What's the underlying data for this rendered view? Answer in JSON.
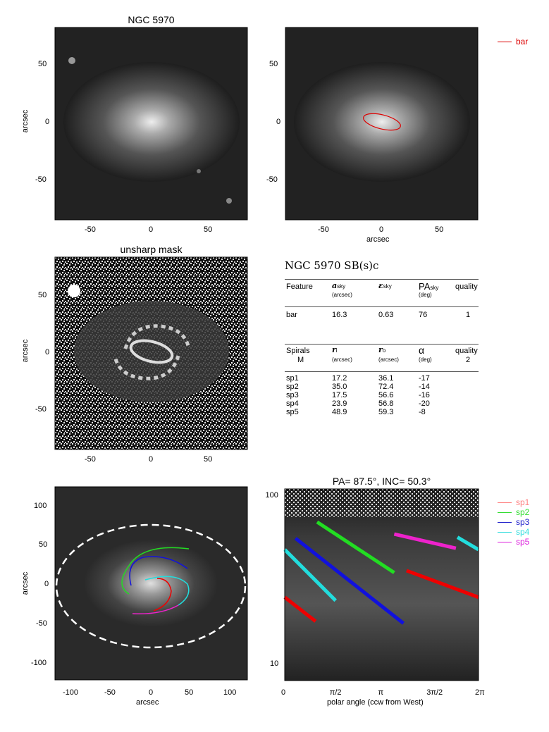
{
  "panels": {
    "top_left": {
      "title": "NGC 5970",
      "ylabel": "arcsec",
      "xticks": [
        "-50",
        "0",
        "50"
      ],
      "yticks": [
        "50",
        "0",
        "-50"
      ]
    },
    "top_right": {
      "xlabel": "arcsec",
      "xticks": [
        "-50",
        "0",
        "50"
      ],
      "yticks": [
        "50",
        "0",
        "-50"
      ],
      "legend": [
        {
          "label": "bar",
          "color": "#dd0000"
        }
      ]
    },
    "mid_left": {
      "title": "unsharp mask",
      "ylabel": "arcsec",
      "xticks": [
        "-50",
        "0",
        "50"
      ],
      "yticks": [
        "50",
        "0",
        "-50"
      ]
    },
    "bottom_left": {
      "xlabel": "arcsec",
      "ylabel": "arcsec",
      "xticks": [
        "-100",
        "-50",
        "0",
        "50",
        "100"
      ],
      "yticks": [
        "100",
        "50",
        "0",
        "-50",
        "-100"
      ]
    },
    "bottom_right": {
      "title": "PA=  87.5°, INC=  50.3°",
      "xlabel": "polar angle (ccw from West)",
      "xticks": [
        "0",
        "π/2",
        "π",
        "3π/2",
        "2π"
      ],
      "yticks": [
        "100",
        "10"
      ],
      "legend": [
        {
          "label": "sp1",
          "color": "#ff8080"
        },
        {
          "label": "sp2",
          "color": "#33dd33"
        },
        {
          "label": "sp3",
          "color": "#2222cc"
        },
        {
          "label": "sp4",
          "color": "#33dddd"
        },
        {
          "label": "sp5",
          "color": "#dd22dd"
        }
      ]
    }
  },
  "table": {
    "title": "NGC 5970  SB(s)c",
    "bar_header": {
      "feature": "Feature",
      "a": "a",
      "a_sub": "sky",
      "a_unit": "(arcsec)",
      "eps": "ε",
      "eps_sub": "sky",
      "pa": "PA",
      "pa_sub": "sky",
      "pa_unit": "(deg)",
      "quality": "quality"
    },
    "bar_row": {
      "feature": "bar",
      "a": "16.3",
      "eps": "0.63",
      "pa": "76",
      "quality": "1"
    },
    "spiral_header": {
      "feature": "Spirals",
      "m": "M",
      "ri": "r",
      "ri_sub": "i",
      "ri_unit": "(arcsec)",
      "ro": "r",
      "ro_sub": "o",
      "ro_unit": "(arcsec)",
      "alpha": "α",
      "alpha_unit": "(deg)",
      "quality": "quality",
      "quality_val": "2"
    },
    "spirals": [
      {
        "name": "sp1",
        "ri": "17.2",
        "ro": "36.1",
        "alpha": "-17"
      },
      {
        "name": "sp2",
        "ri": "35.0",
        "ro": "72.4",
        "alpha": "-14"
      },
      {
        "name": "sp3",
        "ri": "17.5",
        "ro": "56.6",
        "alpha": "-16"
      },
      {
        "name": "sp4",
        "ri": "23.9",
        "ro": "56.8",
        "alpha": "-20"
      },
      {
        "name": "sp5",
        "ri": "48.9",
        "ro": "59.3",
        "alpha": "-8"
      }
    ]
  },
  "chart_data": {
    "type": "line",
    "title": "PA=  87.5°, INC=  50.3°",
    "xlabel": "polar angle (ccw from West)",
    "ylabel": "",
    "xlim": [
      0,
      6.2832
    ],
    "ylim": [
      8,
      110
    ],
    "yscale": "log",
    "series": [
      {
        "name": "sp1",
        "color": "#ee0000",
        "x": [
          [
            0.0,
            1.0
          ],
          [
            3.95,
            6.28
          ]
        ],
        "y": [
          [
            25,
            18
          ],
          [
            36,
            25
          ]
        ]
      },
      {
        "name": "sp2",
        "color": "#22dd22",
        "x": [
          [
            1.05,
            3.55
          ]
        ],
        "y": [
          [
            70,
            35
          ]
        ]
      },
      {
        "name": "sp3",
        "color": "#1111dd",
        "x": [
          [
            0.35,
            3.85
          ]
        ],
        "y": [
          [
            56,
            17.5
          ]
        ]
      },
      {
        "name": "sp4",
        "color": "#22dddd",
        "x": [
          [
            0.0,
            1.65
          ],
          [
            5.6,
            6.28
          ]
        ],
        "y": [
          [
            48,
            23.9
          ],
          [
            56.8,
            48
          ]
        ]
      },
      {
        "name": "sp5",
        "color": "#ee22cc",
        "x": [
          [
            3.55,
            5.55
          ]
        ],
        "y": [
          [
            59.3,
            48.9
          ]
        ]
      }
    ]
  }
}
